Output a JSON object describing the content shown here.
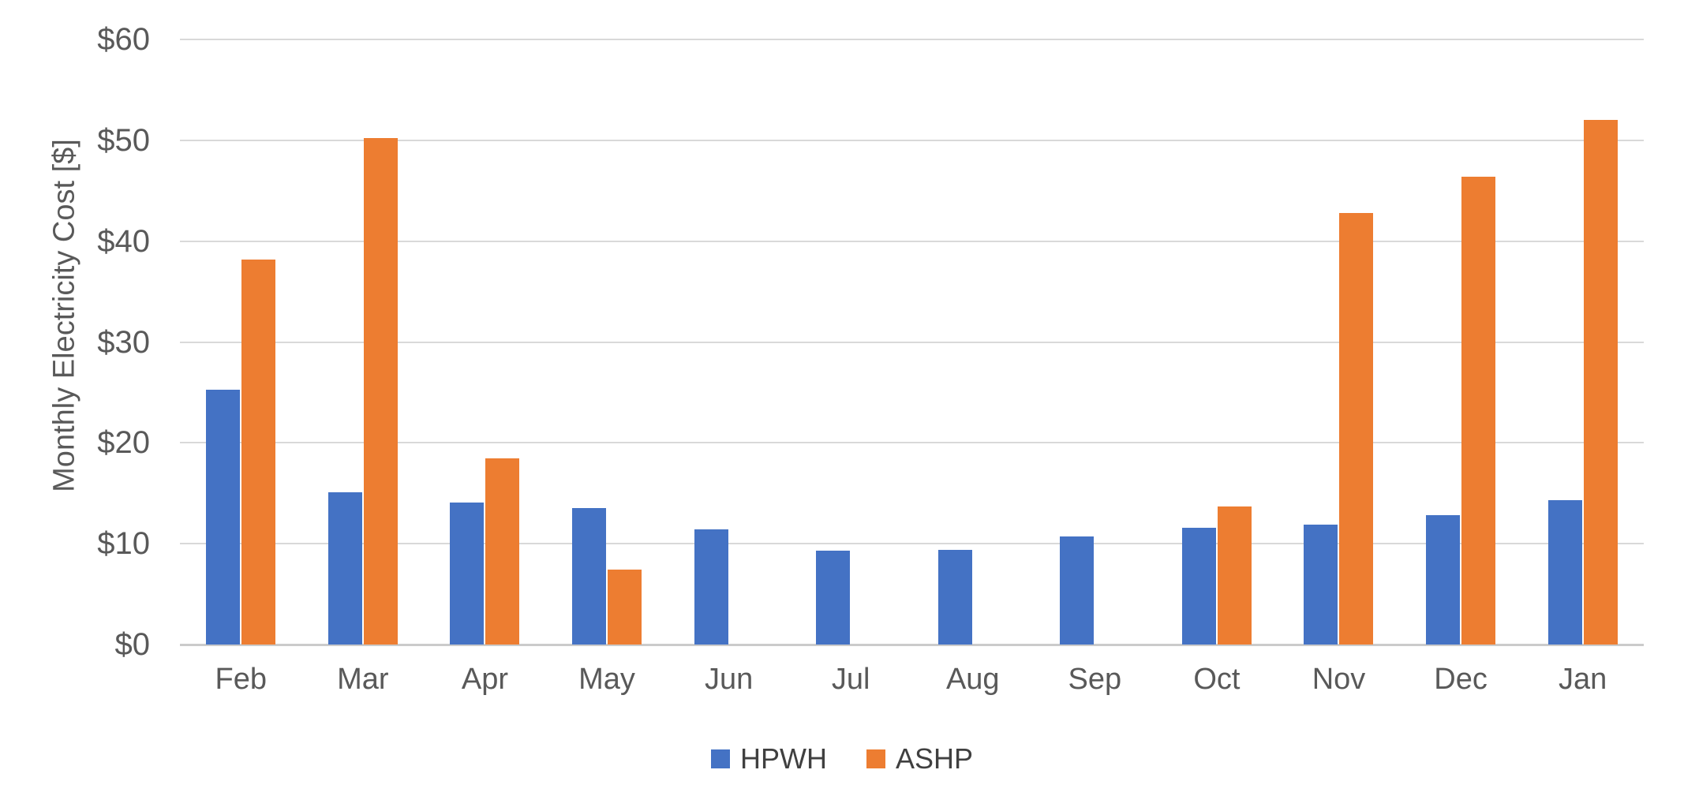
{
  "chart_data": {
    "type": "bar",
    "title": "",
    "xlabel": "",
    "ylabel": "Monthly Electricity Cost [$]",
    "ylim": [
      0,
      60
    ],
    "ytick_step": 10,
    "ytick_labels": [
      "$0",
      "$10",
      "$20",
      "$30",
      "$40",
      "$50",
      "$60"
    ],
    "grid": true,
    "legend_position": "bottom-center",
    "categories": [
      "Feb",
      "Mar",
      "Apr",
      "May",
      "Jun",
      "Jul",
      "Aug",
      "Sep",
      "Oct",
      "Nov",
      "Dec",
      "Jan"
    ],
    "series": [
      {
        "name": "HPWH",
        "color": "#4472C4",
        "values": [
          25.3,
          15.1,
          14.1,
          13.5,
          11.4,
          9.3,
          9.4,
          10.7,
          11.6,
          11.9,
          12.8,
          14.3
        ]
      },
      {
        "name": "ASHP",
        "color": "#ED7D31",
        "values": [
          38.2,
          50.2,
          18.5,
          7.4,
          0,
          0,
          0,
          0,
          13.7,
          42.8,
          46.4,
          52.0
        ]
      }
    ]
  },
  "colors": {
    "gridline": "#D9D9D9",
    "axis_line": "#CBCBCB",
    "text": "#595959",
    "background": "#FFFFFF"
  }
}
